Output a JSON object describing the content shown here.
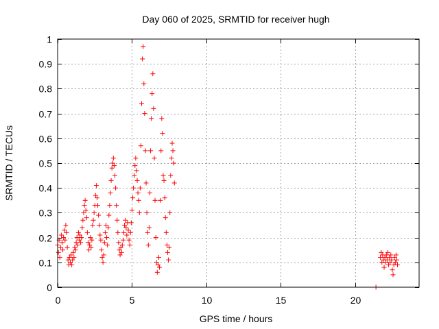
{
  "chart_data": {
    "type": "scatter",
    "title": "Day 060 of 2025, SRMTID for receiver hugh",
    "xlabel": "GPS time / hours",
    "ylabel": "SRMTID / TECUs",
    "xlim": [
      0,
      24.3
    ],
    "ylim": [
      0,
      1
    ],
    "xticks": [
      0,
      5,
      10,
      15,
      20
    ],
    "xtick_labels": [
      "0",
      "5",
      "10",
      "15",
      "20"
    ],
    "yticks": [
      0,
      0.1,
      0.2,
      0.3,
      0.4,
      0.5,
      0.6,
      0.7,
      0.8,
      0.9,
      1
    ],
    "ytick_labels": [
      "0",
      "0.1",
      "0.2",
      "0.3",
      "0.4",
      "0.5",
      "0.6",
      "0.7",
      "0.8",
      "0.9",
      "1"
    ],
    "grid": true,
    "marker": "plus",
    "series": [
      {
        "name": "SRMTID",
        "color": "#ff0000",
        "points": [
          [
            0.0,
            0.17
          ],
          [
            0.05,
            0.14
          ],
          [
            0.1,
            0.19
          ],
          [
            0.15,
            0.12
          ],
          [
            0.2,
            0.16
          ],
          [
            0.25,
            0.21
          ],
          [
            0.3,
            0.18
          ],
          [
            0.35,
            0.15
          ],
          [
            0.4,
            0.2
          ],
          [
            0.45,
            0.23
          ],
          [
            0.5,
            0.19
          ],
          [
            0.55,
            0.25
          ],
          [
            0.6,
            0.22
          ],
          [
            0.65,
            0.16
          ],
          [
            0.7,
            0.11
          ],
          [
            0.75,
            0.09
          ],
          [
            0.8,
            0.12
          ],
          [
            0.85,
            0.1
          ],
          [
            0.9,
            0.13
          ],
          [
            0.95,
            0.09
          ],
          [
            1.0,
            0.11
          ],
          [
            1.05,
            0.14
          ],
          [
            1.1,
            0.12
          ],
          [
            1.15,
            0.16
          ],
          [
            1.2,
            0.15
          ],
          [
            1.25,
            0.18
          ],
          [
            1.3,
            0.2
          ],
          [
            1.35,
            0.17
          ],
          [
            1.4,
            0.22
          ],
          [
            1.45,
            0.19
          ],
          [
            1.5,
            0.21
          ],
          [
            1.55,
            0.18
          ],
          [
            1.6,
            0.2
          ],
          [
            1.65,
            0.24
          ],
          [
            1.7,
            0.27
          ],
          [
            1.75,
            0.3
          ],
          [
            1.8,
            0.33
          ],
          [
            1.85,
            0.35
          ],
          [
            1.9,
            0.31
          ],
          [
            1.95,
            0.28
          ],
          [
            2.0,
            0.22
          ],
          [
            2.05,
            0.18
          ],
          [
            2.1,
            0.15
          ],
          [
            2.15,
            0.17
          ],
          [
            2.2,
            0.2
          ],
          [
            2.25,
            0.16
          ],
          [
            2.3,
            0.19
          ],
          [
            2.35,
            0.25
          ],
          [
            2.4,
            0.27
          ],
          [
            2.45,
            0.3
          ],
          [
            2.5,
            0.33
          ],
          [
            2.55,
            0.37
          ],
          [
            2.6,
            0.41
          ],
          [
            2.65,
            0.36
          ],
          [
            2.7,
            0.33
          ],
          [
            2.75,
            0.29
          ],
          [
            2.8,
            0.25
          ],
          [
            2.85,
            0.21
          ],
          [
            2.9,
            0.19
          ],
          [
            2.95,
            0.15
          ],
          [
            3.0,
            0.12
          ],
          [
            3.05,
            0.1
          ],
          [
            3.1,
            0.13
          ],
          [
            3.15,
            0.18
          ],
          [
            3.2,
            0.22
          ],
          [
            3.25,
            0.25
          ],
          [
            3.3,
            0.2
          ],
          [
            3.35,
            0.17
          ],
          [
            3.4,
            0.24
          ],
          [
            3.45,
            0.29
          ],
          [
            3.5,
            0.33
          ],
          [
            3.55,
            0.38
          ],
          [
            3.6,
            0.43
          ],
          [
            3.65,
            0.48
          ],
          [
            3.7,
            0.5
          ],
          [
            3.75,
            0.52
          ],
          [
            3.8,
            0.49
          ],
          [
            3.85,
            0.45
          ],
          [
            3.9,
            0.4
          ],
          [
            3.95,
            0.33
          ],
          [
            4.0,
            0.27
          ],
          [
            4.05,
            0.22
          ],
          [
            4.1,
            0.18
          ],
          [
            4.15,
            0.15
          ],
          [
            4.2,
            0.13
          ],
          [
            4.25,
            0.16
          ],
          [
            4.3,
            0.14
          ],
          [
            4.35,
            0.17
          ],
          [
            4.4,
            0.19
          ],
          [
            4.45,
            0.22
          ],
          [
            4.5,
            0.25
          ],
          [
            4.55,
            0.27
          ],
          [
            4.6,
            0.24
          ],
          [
            4.65,
            0.21
          ],
          [
            4.7,
            0.26
          ],
          [
            4.75,
            0.23
          ],
          [
            4.8,
            0.19
          ],
          [
            4.85,
            0.17
          ],
          [
            4.9,
            0.22
          ],
          [
            4.95,
            0.26
          ],
          [
            5.0,
            0.31
          ],
          [
            5.05,
            0.36
          ],
          [
            5.1,
            0.4
          ],
          [
            5.15,
            0.45
          ],
          [
            5.2,
            0.49
          ],
          [
            5.25,
            0.52
          ],
          [
            5.3,
            0.47
          ],
          [
            5.35,
            0.43
          ],
          [
            5.4,
            0.38
          ],
          [
            5.45,
            0.35
          ],
          [
            5.5,
            0.3
          ],
          [
            5.55,
            0.4
          ],
          [
            5.6,
            0.57
          ],
          [
            5.65,
            0.74
          ],
          [
            5.7,
            0.92
          ],
          [
            5.75,
            0.97
          ],
          [
            5.8,
            0.82
          ],
          [
            5.85,
            0.7
          ],
          [
            5.9,
            0.55
          ],
          [
            5.95,
            0.42
          ],
          [
            6.0,
            0.3
          ],
          [
            6.05,
            0.22
          ],
          [
            6.1,
            0.17
          ],
          [
            6.15,
            0.24
          ],
          [
            6.2,
            0.38
          ],
          [
            6.25,
            0.55
          ],
          [
            6.3,
            0.68
          ],
          [
            6.35,
            0.78
          ],
          [
            6.4,
            0.86
          ],
          [
            6.45,
            0.72
          ],
          [
            6.5,
            0.52
          ],
          [
            6.55,
            0.35
          ],
          [
            6.6,
            0.2
          ],
          [
            6.65,
            0.1
          ],
          [
            6.7,
            0.06
          ],
          [
            6.75,
            0.09
          ],
          [
            6.8,
            0.12
          ],
          [
            6.85,
            0.08
          ],
          [
            6.9,
            0.35
          ],
          [
            6.95,
            0.55
          ],
          [
            7.0,
            0.68
          ],
          [
            7.05,
            0.62
          ],
          [
            7.1,
            0.45
          ],
          [
            7.15,
            0.43
          ],
          [
            7.2,
            0.36
          ],
          [
            7.25,
            0.28
          ],
          [
            7.3,
            0.22
          ],
          [
            7.35,
            0.17
          ],
          [
            7.4,
            0.14
          ],
          [
            7.45,
            0.11
          ],
          [
            7.5,
            0.16
          ],
          [
            7.55,
            0.3
          ],
          [
            7.6,
            0.45
          ],
          [
            7.65,
            0.52
          ],
          [
            7.7,
            0.58
          ],
          [
            7.75,
            0.55
          ],
          [
            7.8,
            0.5
          ],
          [
            7.85,
            0.42
          ],
          [
            21.4,
            0.0
          ],
          [
            21.7,
            0.12
          ],
          [
            21.75,
            0.14
          ],
          [
            21.8,
            0.1
          ],
          [
            21.85,
            0.13
          ],
          [
            21.9,
            0.11
          ],
          [
            21.95,
            0.08
          ],
          [
            22.0,
            0.12
          ],
          [
            22.05,
            0.1
          ],
          [
            22.1,
            0.13
          ],
          [
            22.15,
            0.11
          ],
          [
            22.2,
            0.14
          ],
          [
            22.25,
            0.09
          ],
          [
            22.3,
            0.12
          ],
          [
            22.35,
            0.1
          ],
          [
            22.4,
            0.13
          ],
          [
            22.45,
            0.11
          ],
          [
            22.5,
            0.07
          ],
          [
            22.55,
            0.05
          ],
          [
            22.6,
            0.09
          ],
          [
            22.65,
            0.12
          ],
          [
            22.7,
            0.1
          ],
          [
            22.75,
            0.13
          ],
          [
            22.8,
            0.11
          ],
          [
            22.85,
            0.09
          ]
        ]
      }
    ]
  }
}
